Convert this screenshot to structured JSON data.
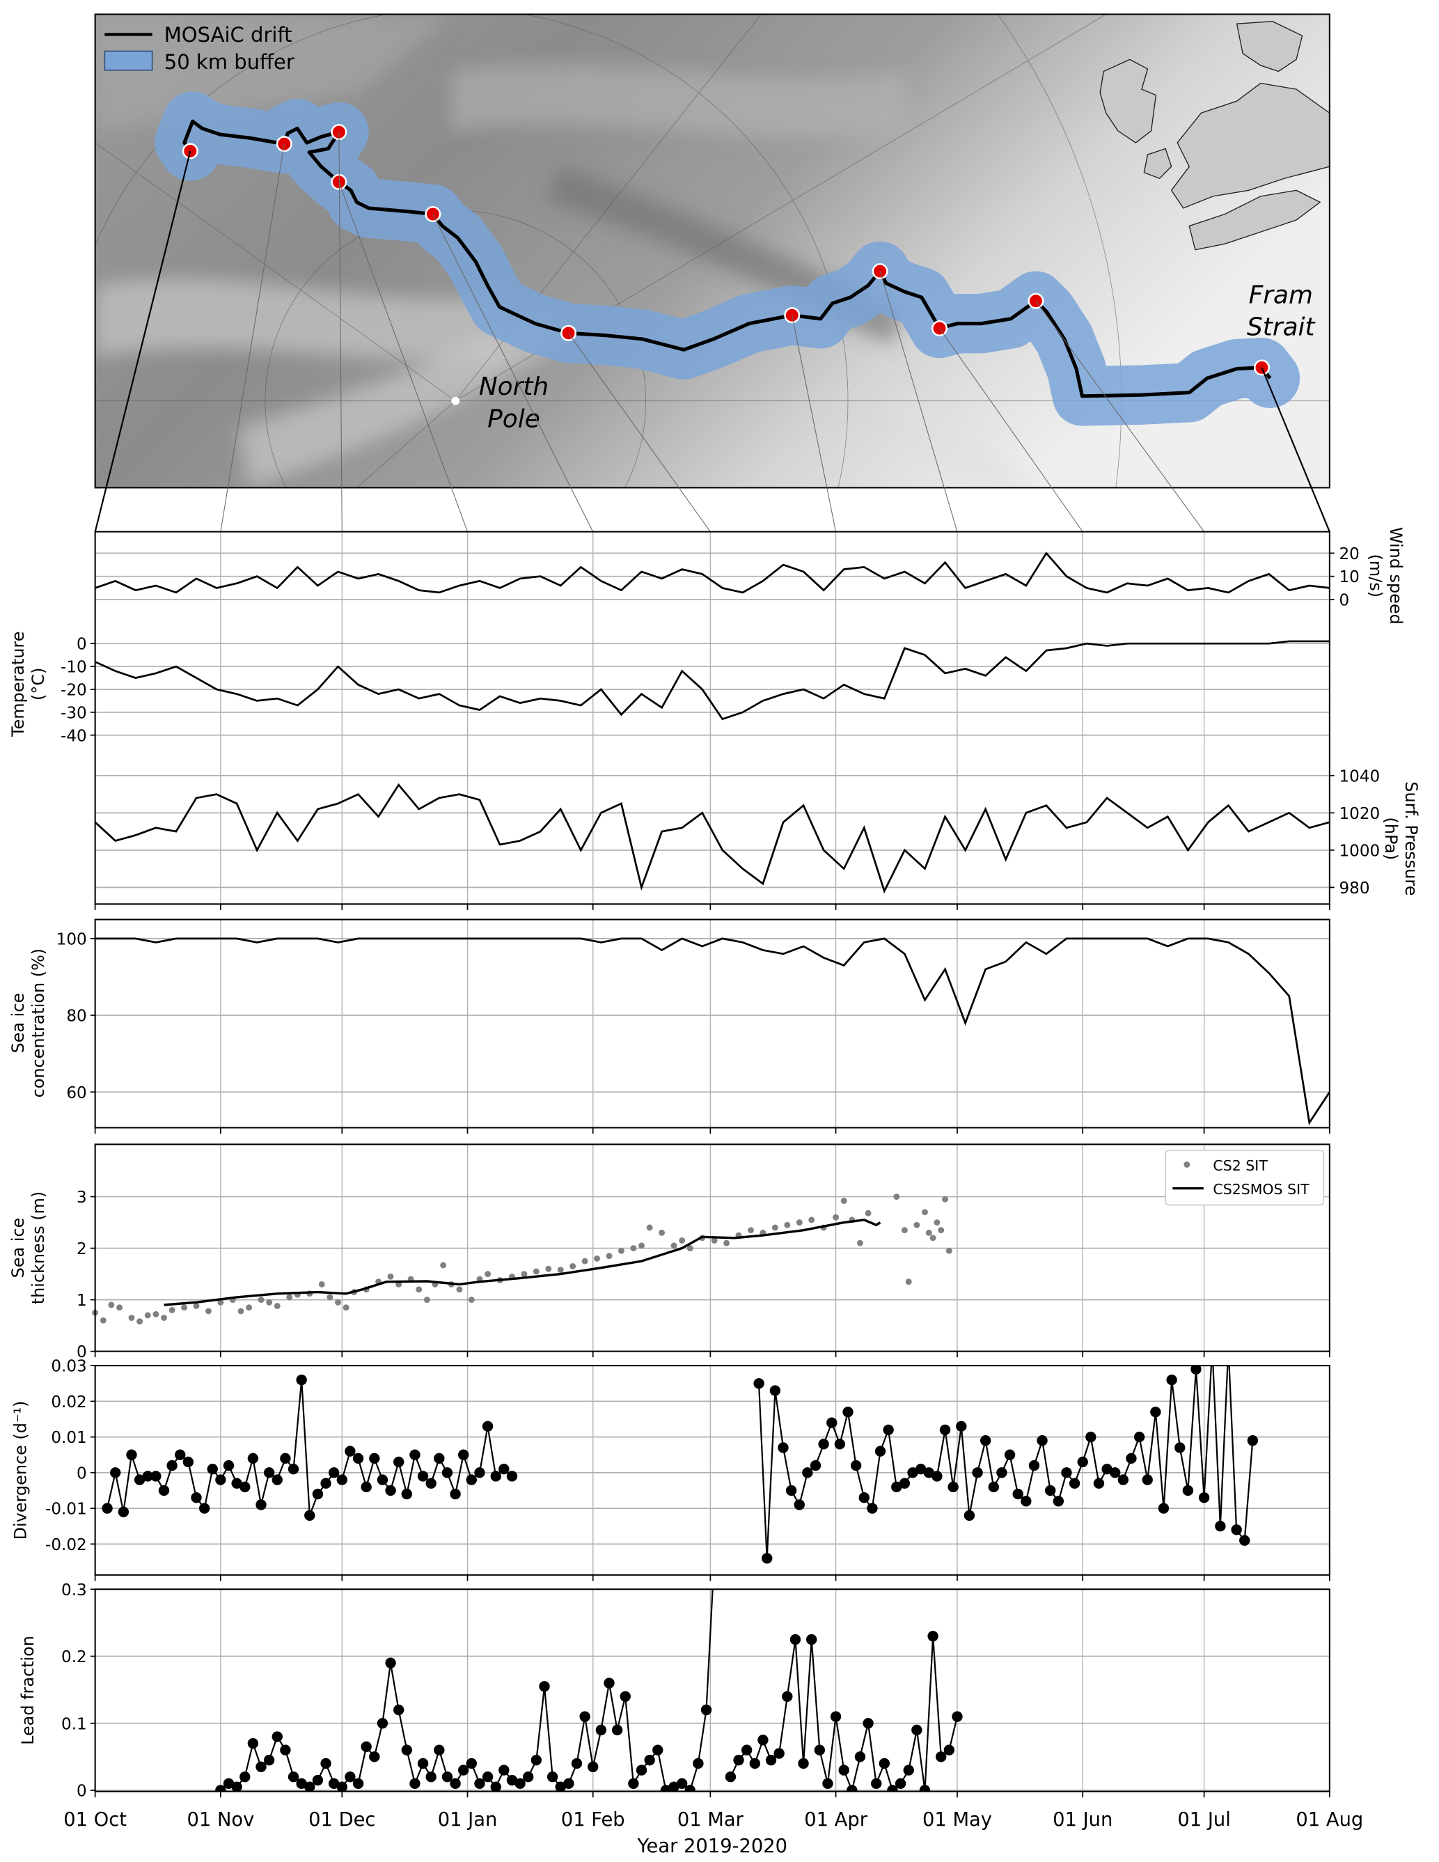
{
  "figure": {
    "xlabel": "Year 2019-2020",
    "x_tick_labels": [
      "01 Oct",
      "01 Nov",
      "01 Dec",
      "01 Jan",
      "01 Feb",
      "01 Mar",
      "01 Apr",
      "01 May",
      "01 Jun",
      "01 Jul",
      "01 Aug"
    ],
    "x_tick_days": [
      0,
      31,
      61,
      92,
      123,
      152,
      183,
      213,
      244,
      274,
      305
    ],
    "x_range_days": [
      0,
      305
    ]
  },
  "map": {
    "legend": {
      "drift": "MOSAiC drift",
      "buffer": "50 km buffer"
    },
    "labels": {
      "north_pole_1": "North",
      "north_pole_2": "Pole",
      "fram_1": "Fram",
      "fram_2": "Strait"
    },
    "colors": {
      "drift": "#000000",
      "buffer": "#7aa4d8",
      "marker": "#e00000",
      "land": "#c9c9c9"
    }
  },
  "chart_data": [
    {
      "id": "wind",
      "type": "line",
      "ylabel": [
        "Wind speed",
        "(m/s)"
      ],
      "yticks": [
        0,
        10,
        20
      ],
      "ylim": [
        0,
        22
      ],
      "start_day": 0,
      "step_days": 5,
      "values": [
        5,
        8,
        4,
        6,
        3,
        9,
        5,
        7,
        10,
        5,
        14,
        6,
        12,
        9,
        11,
        8,
        4,
        3,
        6,
        8,
        5,
        9,
        10,
        6,
        14,
        8,
        4,
        12,
        9,
        13,
        11,
        5,
        3,
        8,
        15,
        12,
        4,
        13,
        14,
        9,
        12,
        7,
        16,
        5,
        8,
        11,
        6,
        20,
        10,
        5,
        3,
        7,
        6,
        9,
        4,
        5,
        3,
        8,
        11,
        4,
        6,
        5
      ]
    },
    {
      "id": "temperature",
      "type": "line",
      "ylabel": [
        "Temperature",
        "(°C)"
      ],
      "yticks": [
        0,
        -10,
        -20,
        -30,
        -40
      ],
      "ylim": [
        -40,
        3
      ],
      "start_day": 0,
      "step_days": 5,
      "values": [
        -8,
        -12,
        -15,
        -13,
        -10,
        -15,
        -20,
        -22,
        -25,
        -24,
        -27,
        -20,
        -10,
        -18,
        -22,
        -20,
        -24,
        -22,
        -27,
        -29,
        -23,
        -26,
        -24,
        -25,
        -27,
        -20,
        -31,
        -22,
        -28,
        -12,
        -20,
        -33,
        -30,
        -25,
        -22,
        -20,
        -24,
        -18,
        -22,
        -24,
        -2,
        -5,
        -13,
        -11,
        -14,
        -6,
        -12,
        -3,
        -2,
        0,
        -1,
        0,
        0,
        0,
        0,
        0,
        0,
        0,
        0,
        1,
        1,
        1
      ]
    },
    {
      "id": "pressure",
      "type": "line",
      "ylabel": [
        "Surf. Pressure",
        "(hPa)"
      ],
      "yticks": [
        980,
        1000,
        1020,
        1040
      ],
      "ylim": [
        972,
        1040
      ],
      "start_day": 0,
      "step_days": 5,
      "values": [
        1015,
        1005,
        1008,
        1012,
        1010,
        1028,
        1030,
        1025,
        1000,
        1020,
        1005,
        1022,
        1025,
        1030,
        1018,
        1035,
        1022,
        1028,
        1030,
        1027,
        1003,
        1005,
        1010,
        1022,
        1000,
        1020,
        1025,
        980,
        1010,
        1012,
        1020,
        1000,
        990,
        982,
        1015,
        1024,
        1000,
        990,
        1012,
        978,
        1000,
        990,
        1018,
        1000,
        1022,
        995,
        1020,
        1024,
        1012,
        1015,
        1028,
        1020,
        1012,
        1018,
        1000,
        1015,
        1024,
        1010,
        1015,
        1020,
        1012,
        1015
      ]
    },
    {
      "id": "sic",
      "type": "line",
      "ylabel": [
        "Sea ice",
        "concentration (%)"
      ],
      "yticks": [
        60,
        80,
        100
      ],
      "ylim": [
        51,
        105
      ],
      "start_day": 0,
      "step_days": 5,
      "values": [
        100,
        100,
        100,
        99,
        100,
        100,
        100,
        100,
        99,
        100,
        100,
        100,
        99,
        100,
        100,
        100,
        100,
        100,
        100,
        100,
        100,
        100,
        100,
        100,
        100,
        99,
        100,
        100,
        97,
        100,
        98,
        100,
        99,
        97,
        96,
        98,
        95,
        93,
        99,
        100,
        96,
        84,
        92,
        78,
        92,
        94,
        99,
        96,
        100,
        100,
        100,
        100,
        100,
        98,
        100,
        100,
        99,
        96,
        91,
        85,
        52,
        60
      ]
    },
    {
      "id": "sit",
      "type": "scatter+line",
      "ylabel": [
        "Sea ice",
        "thickness (m)"
      ],
      "yticks": [
        0,
        1,
        2,
        3
      ],
      "ylim": [
        0,
        4
      ],
      "legend": {
        "cs2": "CS2 SIT",
        "cs2smos": "CS2SMOS SIT"
      },
      "cs2_points": [
        [
          0,
          0.75
        ],
        [
          2,
          0.6
        ],
        [
          4,
          0.9
        ],
        [
          6,
          0.85
        ],
        [
          9,
          0.65
        ],
        [
          11,
          0.58
        ],
        [
          13,
          0.7
        ],
        [
          15,
          0.72
        ],
        [
          17,
          0.65
        ],
        [
          19,
          0.8
        ],
        [
          22,
          0.85
        ],
        [
          25,
          0.88
        ],
        [
          28,
          0.78
        ],
        [
          31,
          0.95
        ],
        [
          34,
          1.0
        ],
        [
          36,
          0.78
        ],
        [
          38,
          0.85
        ],
        [
          41,
          1.0
        ],
        [
          43,
          0.95
        ],
        [
          45,
          0.88
        ],
        [
          48,
          1.05
        ],
        [
          50,
          1.1
        ],
        [
          53,
          1.12
        ],
        [
          56,
          1.3
        ],
        [
          58,
          1.05
        ],
        [
          60,
          0.95
        ],
        [
          62,
          0.85
        ],
        [
          64,
          1.15
        ],
        [
          67,
          1.2
        ],
        [
          70,
          1.35
        ],
        [
          73,
          1.45
        ],
        [
          75,
          1.3
        ],
        [
          78,
          1.4
        ],
        [
          80,
          1.2
        ],
        [
          82,
          1.0
        ],
        [
          84,
          1.3
        ],
        [
          86,
          1.67
        ],
        [
          88,
          1.3
        ],
        [
          90,
          1.2
        ],
        [
          93,
          1.0
        ],
        [
          95,
          1.4
        ],
        [
          97,
          1.5
        ],
        [
          100,
          1.38
        ],
        [
          103,
          1.45
        ],
        [
          106,
          1.5
        ],
        [
          109,
          1.55
        ],
        [
          112,
          1.6
        ],
        [
          115,
          1.58
        ],
        [
          118,
          1.65
        ],
        [
          121,
          1.75
        ],
        [
          124,
          1.8
        ],
        [
          127,
          1.85
        ],
        [
          130,
          1.95
        ],
        [
          133,
          2.0
        ],
        [
          135,
          2.05
        ],
        [
          137,
          2.4
        ],
        [
          140,
          2.3
        ],
        [
          143,
          2.05
        ],
        [
          145,
          2.15
        ],
        [
          147,
          2.0
        ],
        [
          150,
          2.2
        ],
        [
          153,
          2.15
        ],
        [
          156,
          2.1
        ],
        [
          159,
          2.25
        ],
        [
          162,
          2.35
        ],
        [
          165,
          2.3
        ],
        [
          168,
          2.4
        ],
        [
          171,
          2.45
        ],
        [
          174,
          2.5
        ],
        [
          177,
          2.55
        ],
        [
          180,
          2.4
        ],
        [
          183,
          2.6
        ],
        [
          185,
          2.92
        ],
        [
          187,
          2.55
        ],
        [
          189,
          2.1
        ],
        [
          191,
          2.68
        ],
        [
          198,
          3.0
        ],
        [
          201,
          1.35
        ],
        [
          200,
          2.35
        ],
        [
          203,
          2.45
        ],
        [
          205,
          2.7
        ],
        [
          206,
          2.3
        ],
        [
          207,
          2.2
        ],
        [
          208,
          2.5
        ],
        [
          209,
          2.35
        ],
        [
          210,
          2.95
        ],
        [
          211,
          1.95
        ]
      ],
      "cs2smos_line": [
        [
          17,
          0.9
        ],
        [
          25,
          0.95
        ],
        [
          35,
          1.05
        ],
        [
          45,
          1.12
        ],
        [
          55,
          1.15
        ],
        [
          62,
          1.12
        ],
        [
          66,
          1.2
        ],
        [
          72,
          1.35
        ],
        [
          82,
          1.36
        ],
        [
          90,
          1.3
        ],
        [
          95,
          1.35
        ],
        [
          105,
          1.42
        ],
        [
          115,
          1.5
        ],
        [
          125,
          1.62
        ],
        [
          135,
          1.75
        ],
        [
          145,
          2.0
        ],
        [
          150,
          2.22
        ],
        [
          158,
          2.2
        ],
        [
          165,
          2.25
        ],
        [
          175,
          2.35
        ],
        [
          185,
          2.5
        ],
        [
          190,
          2.55
        ],
        [
          193,
          2.45
        ],
        [
          194,
          2.5
        ]
      ]
    },
    {
      "id": "divergence",
      "type": "line+markers",
      "ylabel": [
        "Divergence (d⁻¹)"
      ],
      "yticks": [
        -0.02,
        -0.01,
        0,
        0.01,
        0.02,
        0.03
      ],
      "ylim": [
        -0.029,
        0.03
      ],
      "segments": [
        {
          "start_day": 3,
          "step_days": 2,
          "values": [
            -0.01,
            0.0,
            -0.011,
            0.005,
            -0.002,
            -0.001,
            -0.001,
            -0.005,
            0.002,
            0.005,
            0.003,
            -0.007,
            -0.01,
            0.001,
            -0.002,
            0.002,
            -0.003,
            -0.004,
            0.004,
            -0.009,
            0.0,
            -0.002,
            0.004,
            0.001,
            0.026,
            -0.012,
            -0.006,
            -0.003,
            0.0,
            -0.002,
            0.006,
            0.004,
            -0.004,
            0.004,
            -0.002,
            -0.005,
            0.003,
            -0.006,
            0.005,
            -0.001,
            -0.003,
            0.004,
            0.0,
            -0.006,
            0.005,
            -0.002,
            0.0,
            0.013,
            -0.001,
            0.001,
            -0.001
          ]
        },
        {
          "start_day": 164,
          "step_days": 2,
          "values": [
            0.025,
            -0.024,
            0.023,
            0.007,
            -0.005,
            -0.009,
            0.0,
            0.002,
            0.008,
            0.014,
            0.008,
            0.017,
            0.002,
            -0.007,
            -0.01,
            0.006,
            0.012,
            -0.004,
            -0.003,
            0.0,
            0.001,
            0.0,
            -0.001,
            0.012,
            -0.004,
            0.013,
            -0.012,
            0.0,
            0.009,
            -0.004,
            0.0,
            0.005,
            -0.006,
            -0.008,
            0.002,
            0.009,
            -0.005,
            -0.008,
            0.0,
            -0.003,
            0.003,
            0.01,
            -0.003,
            0.001,
            0.0,
            -0.002,
            0.004,
            0.01,
            -0.002,
            0.017,
            -0.01,
            0.026,
            0.007,
            -0.005,
            0.029,
            -0.007,
            0.035,
            -0.015,
            0.035,
            -0.016,
            -0.019,
            0.009
          ]
        }
      ]
    },
    {
      "id": "lead",
      "type": "line+markers",
      "ylabel": [
        "Lead fraction"
      ],
      "yticks": [
        0,
        0.1,
        0.2,
        0.3
      ],
      "ylim": [
        -0.01,
        0.3
      ],
      "start_day": 31,
      "step_days": 2,
      "values": [
        0.0,
        0.01,
        0.005,
        0.02,
        0.07,
        0.035,
        0.045,
        0.08,
        0.06,
        0.02,
        0.01,
        0.005,
        0.015,
        0.04,
        0.01,
        0.005,
        0.02,
        0.01,
        0.065,
        0.05,
        0.1,
        0.19,
        0.12,
        0.06,
        0.01,
        0.04,
        0.02,
        0.06,
        0.02,
        0.01,
        0.03,
        0.04,
        0.01,
        0.02,
        0.005,
        0.03,
        0.015,
        0.01,
        0.02,
        0.045,
        0.155,
        0.02,
        0.005,
        0.01,
        0.04,
        0.11,
        0.035,
        0.09,
        0.16,
        0.09,
        0.14,
        0.01,
        0.03,
        0.045,
        0.06,
        0.0,
        0.005,
        0.01,
        0.0,
        0.04,
        0.12,
        0.35,
        null,
        0.02,
        0.045,
        0.06,
        0.04,
        0.075,
        0.045,
        0.055,
        0.14,
        0.225,
        0.04,
        0.225,
        0.06,
        0.01,
        0.11,
        0.03,
        0.0,
        0.05,
        0.1,
        0.01,
        0.04,
        0.0,
        0.01,
        0.03,
        0.09,
        0.0,
        0.23,
        0.05,
        0.06,
        0.11
      ]
    }
  ]
}
